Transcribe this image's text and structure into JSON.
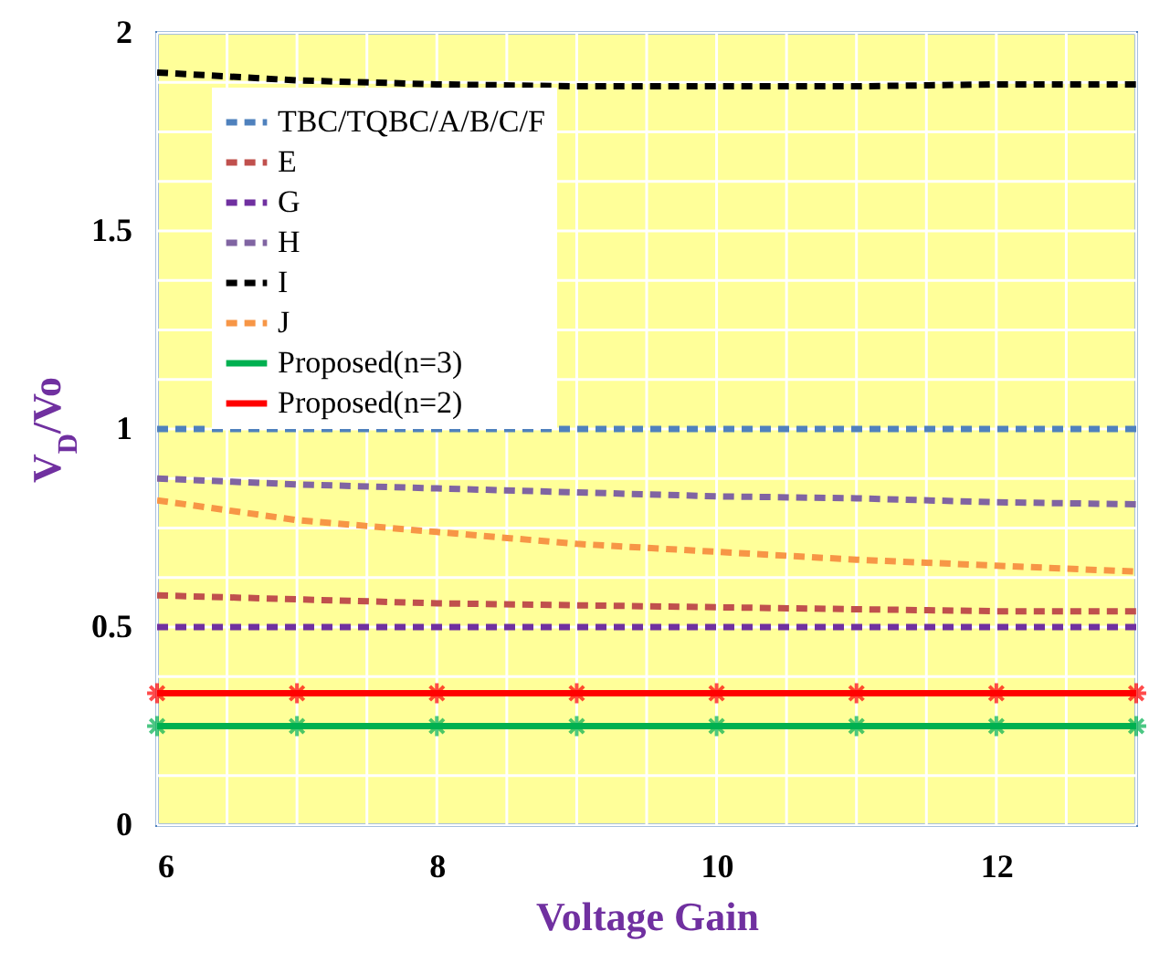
{
  "chart_data": {
    "type": "line",
    "xlabel": "Voltage Gain",
    "ylabel": "V$_{D}$/Vo",
    "x": [
      6,
      7,
      8,
      9,
      10,
      11,
      12,
      13
    ],
    "xlim": [
      6,
      13
    ],
    "ylim": [
      0,
      2
    ],
    "xticks": [
      6,
      {
        "value": 6.5,
        "label": null
      },
      {
        "value": 7,
        "label": null
      },
      {
        "value": 7.5,
        "label": null
      },
      8,
      {
        "value": 8.5,
        "label": null
      },
      {
        "value": 9,
        "label": null
      },
      {
        "value": 9.5,
        "label": null
      },
      10,
      {
        "value": 10.5,
        "label": null
      },
      {
        "value": 11,
        "label": null
      },
      {
        "value": 11.5,
        "label": null
      },
      12,
      {
        "value": 12.5,
        "label": null
      },
      {
        "value": 13,
        "label": null
      }
    ],
    "yticks": [
      0,
      {
        "value": 0.125,
        "label": null
      },
      {
        "value": 0.25,
        "label": null
      },
      {
        "value": 0.375,
        "label": null
      },
      0.5,
      {
        "value": 0.625,
        "label": null
      },
      {
        "value": 0.75,
        "label": null
      },
      {
        "value": 0.875,
        "label": null
      },
      1,
      {
        "value": 1.125,
        "label": null
      },
      {
        "value": 1.25,
        "label": null
      },
      {
        "value": 1.375,
        "label": null
      },
      1.5,
      {
        "value": 1.625,
        "label": null
      },
      {
        "value": 1.75,
        "label": null
      },
      {
        "value": 1.875,
        "label": null
      },
      2
    ],
    "grid": true,
    "legend": "top left",
    "series": [
      {
        "name": "TBC/TQBC/A/B/C/F",
        "color": "#4f81bd",
        "line_style": "dashed",
        "values": [
          1,
          1,
          1,
          1,
          1,
          1,
          1,
          1
        ]
      },
      {
        "name": "E",
        "color": "#c0504d",
        "line_style": "dashed",
        "values": [
          0.58,
          0.57,
          0.56,
          0.555,
          0.55,
          0.545,
          0.54,
          0.54
        ]
      },
      {
        "name": "G",
        "color": "#7030a0",
        "line_style": "dashed",
        "values": [
          0.5,
          0.5,
          0.5,
          0.5,
          0.5,
          0.5,
          0.5,
          0.5
        ]
      },
      {
        "name": "H",
        "color": "#8064a2",
        "line_style": "dashed",
        "values": [
          0.875,
          0.86,
          0.85,
          0.84,
          0.83,
          0.825,
          0.815,
          0.81
        ]
      },
      {
        "name": "I",
        "color": "#000000",
        "line_style": "dashed",
        "values": [
          1.9,
          1.88,
          1.87,
          1.865,
          1.865,
          1.865,
          1.87,
          1.87
        ]
      },
      {
        "name": "J",
        "color": "#f79646",
        "line_style": "dashed",
        "values": [
          0.82,
          0.77,
          0.74,
          0.71,
          0.69,
          0.67,
          0.655,
          0.64
        ]
      },
      {
        "name": "Proposed(n=3)",
        "color": "#00b050",
        "line_style": "solid",
        "marker": "cross",
        "values": [
          0.25,
          0.25,
          0.25,
          0.25,
          0.25,
          0.25,
          0.25,
          0.25
        ]
      },
      {
        "name": "Proposed(n=2)",
        "color": "#ff0000",
        "line_style": "solid",
        "marker": "cross",
        "values": [
          0.333,
          0.333,
          0.333,
          0.333,
          0.333,
          0.333,
          0.333,
          0.333
        ]
      }
    ]
  }
}
